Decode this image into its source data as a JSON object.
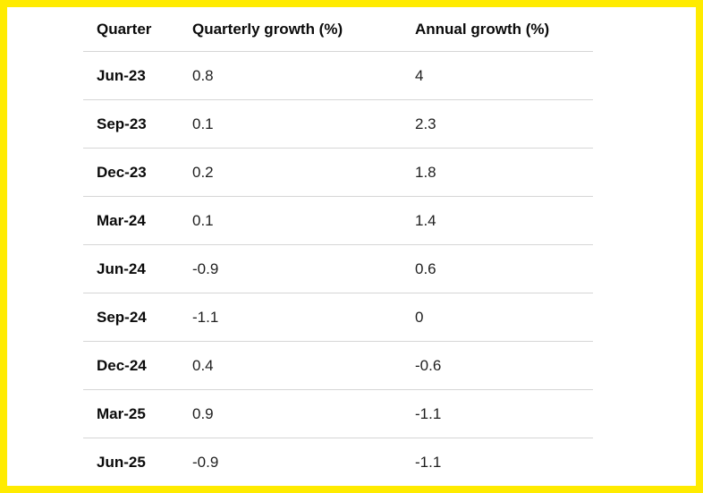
{
  "colors": {
    "frame_border": "#ffeb00",
    "row_divider": "#d6d6d6",
    "header_text": "#0b0b0b",
    "value_text": "#1f1f1f",
    "background": "#ffffff"
  },
  "table": {
    "columns": [
      "Quarter",
      "Quarterly growth (%)",
      "Annual growth (%)"
    ],
    "rows": [
      {
        "quarter": "Jun-23",
        "quarterly": "0.8",
        "annual": "4"
      },
      {
        "quarter": "Sep-23",
        "quarterly": "0.1",
        "annual": "2.3"
      },
      {
        "quarter": "Dec-23",
        "quarterly": "0.2",
        "annual": "1.8"
      },
      {
        "quarter": "Mar-24",
        "quarterly": "0.1",
        "annual": "1.4"
      },
      {
        "quarter": "Jun-24",
        "quarterly": "-0.9",
        "annual": "0.6"
      },
      {
        "quarter": "Sep-24",
        "quarterly": "-1.1",
        "annual": "0"
      },
      {
        "quarter": "Dec-24",
        "quarterly": "0.4",
        "annual": "-0.6"
      },
      {
        "quarter": "Mar-25",
        "quarterly": "0.9",
        "annual": "-1.1"
      },
      {
        "quarter": "Jun-25",
        "quarterly": "-0.9",
        "annual": "-1.1"
      }
    ]
  },
  "chart_data": {
    "type": "table",
    "title": "",
    "columns": [
      "Quarter",
      "Quarterly growth (%)",
      "Annual growth (%)"
    ],
    "categories": [
      "Jun-23",
      "Sep-23",
      "Dec-23",
      "Mar-24",
      "Jun-24",
      "Sep-24",
      "Dec-24",
      "Mar-25",
      "Jun-25"
    ],
    "series": [
      {
        "name": "Quarterly growth (%)",
        "values": [
          0.8,
          0.1,
          0.2,
          0.1,
          -0.9,
          -1.1,
          0.4,
          0.9,
          -0.9
        ]
      },
      {
        "name": "Annual growth (%)",
        "values": [
          4,
          2.3,
          1.8,
          1.4,
          0.6,
          0,
          -0.6,
          -1.1,
          -1.1
        ]
      }
    ]
  }
}
